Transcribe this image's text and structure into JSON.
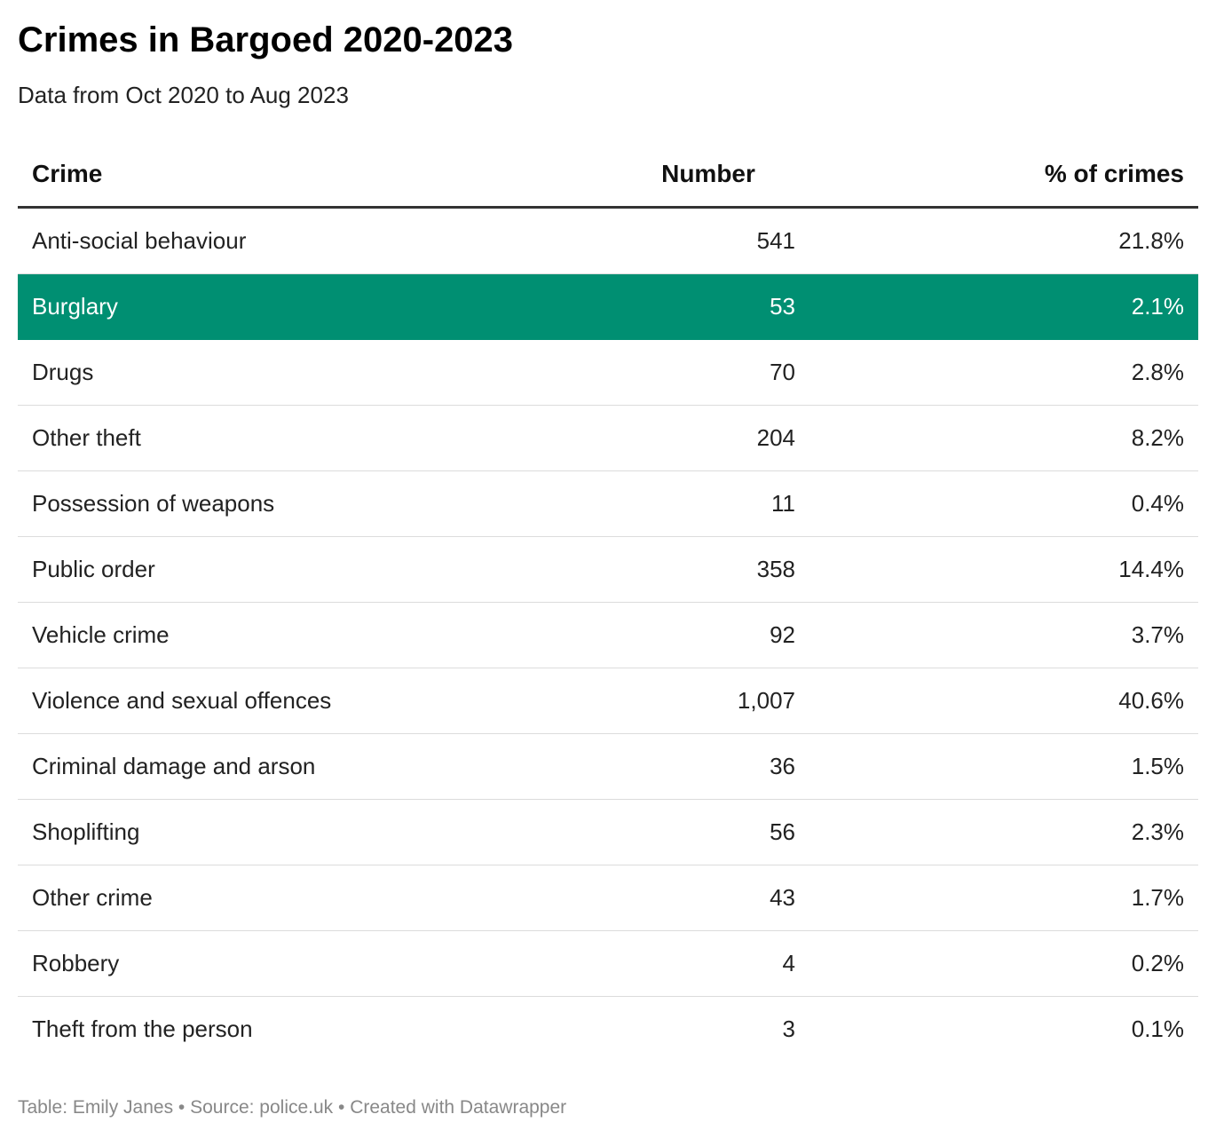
{
  "chart_data": {
    "type": "table",
    "title": "Crimes in Bargoed 2020-2023",
    "subtitle": "Data from Oct 2020 to Aug 2023",
    "columns": [
      "Crime",
      "Number",
      "% of crimes"
    ],
    "highlight_color": "#008f72",
    "rows": [
      {
        "crime": "Anti-social behaviour",
        "number": "541",
        "pct": "21.8%",
        "highlight": false
      },
      {
        "crime": "Burglary",
        "number": "53",
        "pct": "2.1%",
        "highlight": true
      },
      {
        "crime": "Drugs",
        "number": "70",
        "pct": "2.8%",
        "highlight": false
      },
      {
        "crime": "Other theft",
        "number": "204",
        "pct": "8.2%",
        "highlight": false
      },
      {
        "crime": "Possession of weapons",
        "number": "11",
        "pct": "0.4%",
        "highlight": false
      },
      {
        "crime": "Public order",
        "number": "358",
        "pct": "14.4%",
        "highlight": false
      },
      {
        "crime": "Vehicle crime",
        "number": "92",
        "pct": "3.7%",
        "highlight": false
      },
      {
        "crime": "Violence and sexual offences",
        "number": "1,007",
        "pct": "40.6%",
        "highlight": false
      },
      {
        "crime": "Criminal damage and arson",
        "number": "36",
        "pct": "1.5%",
        "highlight": false
      },
      {
        "crime": "Shoplifting",
        "number": "56",
        "pct": "2.3%",
        "highlight": false
      },
      {
        "crime": "Other crime",
        "number": "43",
        "pct": "1.7%",
        "highlight": false
      },
      {
        "crime": "Robbery",
        "number": "4",
        "pct": "0.2%",
        "highlight": false
      },
      {
        "crime": "Theft from the person",
        "number": "3",
        "pct": "0.1%",
        "highlight": false
      }
    ],
    "footer": "Table: Emily Janes • Source: police.uk • Created with Datawrapper"
  }
}
